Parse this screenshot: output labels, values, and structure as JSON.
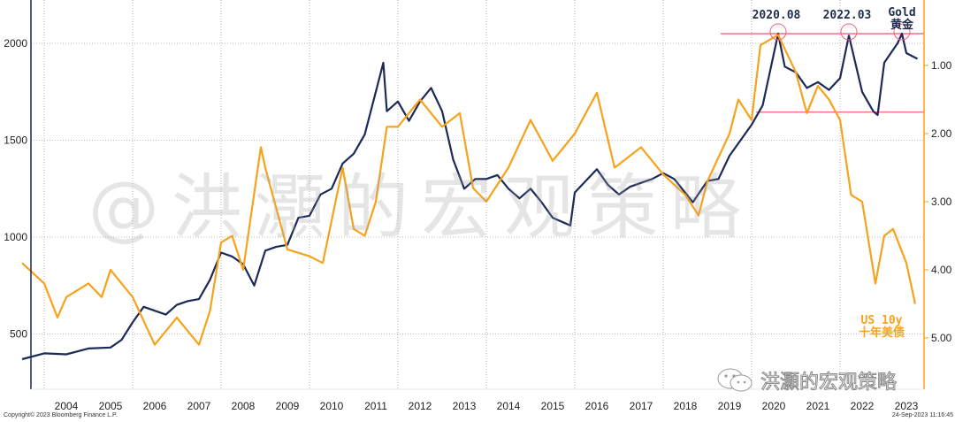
{
  "chart_data": {
    "type": "line",
    "title": "",
    "x_range": [
      2003.5,
      2023.75
    ],
    "x_tick_labels": [
      "2004",
      "2005",
      "2006",
      "2007",
      "2008",
      "2009",
      "2010",
      "2011",
      "2012",
      "2013",
      "2014",
      "2015",
      "2016",
      "2017",
      "2018",
      "2019",
      "2020",
      "2021",
      "2022",
      "2023"
    ],
    "left_axis": {
      "label": "Gold",
      "ticks": [
        "500",
        "1000",
        "1500",
        "2000"
      ],
      "tick_values": [
        500,
        1000,
        1500,
        2000
      ],
      "range": [
        230,
        2230
      ]
    },
    "right_axis": {
      "label": "US 10y (inverted)",
      "ticks": [
        "1.00",
        "2.00",
        "3.00",
        "4.00",
        "5.00"
      ],
      "tick_values": [
        1,
        2,
        3,
        4,
        5
      ],
      "inverted": true
    },
    "series": [
      {
        "name": "Gold 黄金",
        "axis": "left",
        "color": "#1b2a57",
        "x": [
          2003.5,
          2004,
          2004.5,
          2005,
          2005.5,
          2005.75,
          2006,
          2006.25,
          2006.5,
          2006.75,
          2007,
          2007.25,
          2007.5,
          2007.75,
          2008,
          2008.25,
          2008.5,
          2008.75,
          2009,
          2009.25,
          2009.5,
          2009.75,
          2010,
          2010.25,
          2010.5,
          2010.75,
          2011,
          2011.25,
          2011.5,
          2011.67,
          2011.75,
          2012,
          2012.25,
          2012.5,
          2012.75,
          2013,
          2013.25,
          2013.5,
          2013.75,
          2014,
          2014.25,
          2014.5,
          2014.75,
          2015,
          2015.25,
          2015.5,
          2015.9,
          2016,
          2016.5,
          2016.75,
          2017,
          2017.25,
          2017.5,
          2017.75,
          2018,
          2018.25,
          2018.67,
          2019,
          2019.25,
          2019.5,
          2019.75,
          2020,
          2020.25,
          2020.6,
          2020.75,
          2021,
          2021.25,
          2021.5,
          2021.75,
          2022,
          2022.2,
          2022.5,
          2022.75,
          2022.85,
          2023,
          2023.3,
          2023.4,
          2023.5,
          2023.75
        ],
        "y": [
          370,
          400,
          395,
          425,
          430,
          470,
          560,
          640,
          620,
          600,
          650,
          670,
          680,
          780,
          920,
          900,
          860,
          750,
          930,
          950,
          960,
          1100,
          1110,
          1220,
          1250,
          1380,
          1430,
          1530,
          1750,
          1900,
          1650,
          1700,
          1600,
          1700,
          1770,
          1650,
          1400,
          1250,
          1300,
          1300,
          1320,
          1250,
          1200,
          1250,
          1180,
          1100,
          1060,
          1230,
          1350,
          1270,
          1220,
          1260,
          1280,
          1300,
          1330,
          1300,
          1180,
          1290,
          1300,
          1420,
          1500,
          1580,
          1680,
          2050,
          1880,
          1850,
          1770,
          1800,
          1760,
          1820,
          2040,
          1750,
          1650,
          1630,
          1900,
          2000,
          2050,
          1950,
          1920
        ]
      },
      {
        "name": "US 10y 十年美债",
        "axis": "right",
        "color": "#f7a21b",
        "x": [
          2003.5,
          2004,
          2004.3,
          2004.5,
          2005,
          2005.3,
          2005.5,
          2006,
          2006.5,
          2007,
          2007.5,
          2007.75,
          2008,
          2008.25,
          2008.5,
          2008.9,
          2009,
          2009.5,
          2010,
          2010.3,
          2010.75,
          2011,
          2011.25,
          2011.5,
          2011.75,
          2012,
          2012.5,
          2012.75,
          2013,
          2013.4,
          2013.7,
          2014,
          2014.5,
          2015,
          2015.5,
          2016,
          2016.5,
          2016.9,
          2017,
          2017.5,
          2018,
          2018.5,
          2018.8,
          2019,
          2019.5,
          2019.7,
          2020,
          2020.2,
          2020.6,
          2021,
          2021.25,
          2021.5,
          2021.75,
          2022,
          2022.25,
          2022.5,
          2022.8,
          2023,
          2023.2,
          2023.5,
          2023.7
        ],
        "y": [
          3.9,
          4.2,
          4.7,
          4.4,
          4.2,
          4.4,
          4.0,
          4.4,
          5.1,
          4.7,
          5.1,
          4.6,
          3.6,
          3.5,
          4.0,
          2.2,
          2.5,
          3.7,
          3.8,
          3.9,
          2.5,
          3.4,
          3.5,
          3.0,
          1.9,
          1.9,
          1.5,
          1.7,
          1.9,
          1.7,
          2.8,
          3.0,
          2.5,
          1.8,
          2.4,
          2.0,
          1.4,
          2.5,
          2.45,
          2.2,
          2.6,
          2.9,
          3.2,
          2.7,
          2.0,
          1.5,
          1.8,
          0.7,
          0.55,
          1.1,
          1.7,
          1.3,
          1.5,
          1.8,
          2.9,
          3.0,
          4.2,
          3.5,
          3.4,
          3.9,
          4.5
        ]
      }
    ],
    "reference_lines": [
      {
        "axis": "left",
        "value": 2050
      },
      {
        "axis": "left",
        "value": 1645
      }
    ],
    "annotations": [
      {
        "text": "2020.08",
        "x": 2020.6
      },
      {
        "text": "2022.03",
        "x": 2022.2
      },
      {
        "text": "Gold",
        "sub": "黄金",
        "x": 2023.4
      }
    ],
    "series_label": {
      "text": "US 10y",
      "sub": "十年美债"
    },
    "colors": {
      "gold": "#1b2a57",
      "yield": "#f7a21b",
      "ref": "#f2607a",
      "grid": "#bbbbbb"
    }
  },
  "watermark": "@洪灝的宏观策略",
  "brand": "洪灝的宏观策略",
  "copyright": "Copyright© 2023 Bloomberg Finance L.P.",
  "timestamp": "24-Sep-2023 11:16:45"
}
